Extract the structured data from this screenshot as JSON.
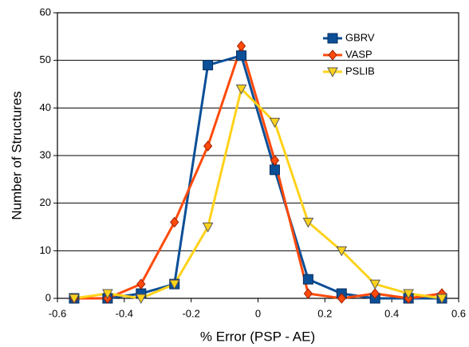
{
  "chart_data": {
    "type": "line",
    "x_label": "% Error (PSP - AE)",
    "y_label": "Number of Structures",
    "x": [
      -0.55,
      -0.45,
      -0.35,
      -0.25,
      -0.15,
      -0.05,
      0.05,
      0.15,
      0.25,
      0.35,
      0.45,
      0.55
    ],
    "series": [
      {
        "name": "GBRV",
        "color": "#0b4f97",
        "marker": "square",
        "values": [
          0,
          0,
          1,
          3,
          49,
          51,
          27,
          4,
          1,
          0,
          0,
          0
        ]
      },
      {
        "name": "VASP",
        "color": "#ff4a0a",
        "marker": "diamond",
        "values": [
          0,
          0,
          3,
          16,
          32,
          53,
          29,
          1,
          0,
          1,
          0,
          1
        ]
      },
      {
        "name": "PSLIB",
        "color": "#ffd21a",
        "marker": "triangle-down",
        "values": [
          0,
          1,
          0,
          3,
          15,
          44,
          37,
          16,
          10,
          3,
          1,
          0
        ]
      }
    ],
    "xlim": [
      -0.6,
      0.6
    ],
    "xticks": [
      -0.6,
      -0.4,
      -0.2,
      0,
      0.2,
      0.4,
      0.6
    ],
    "ylim": [
      0,
      60
    ],
    "yticks": [
      0,
      10,
      20,
      30,
      40,
      50,
      60
    ],
    "grid": true,
    "legend": "upper right"
  }
}
